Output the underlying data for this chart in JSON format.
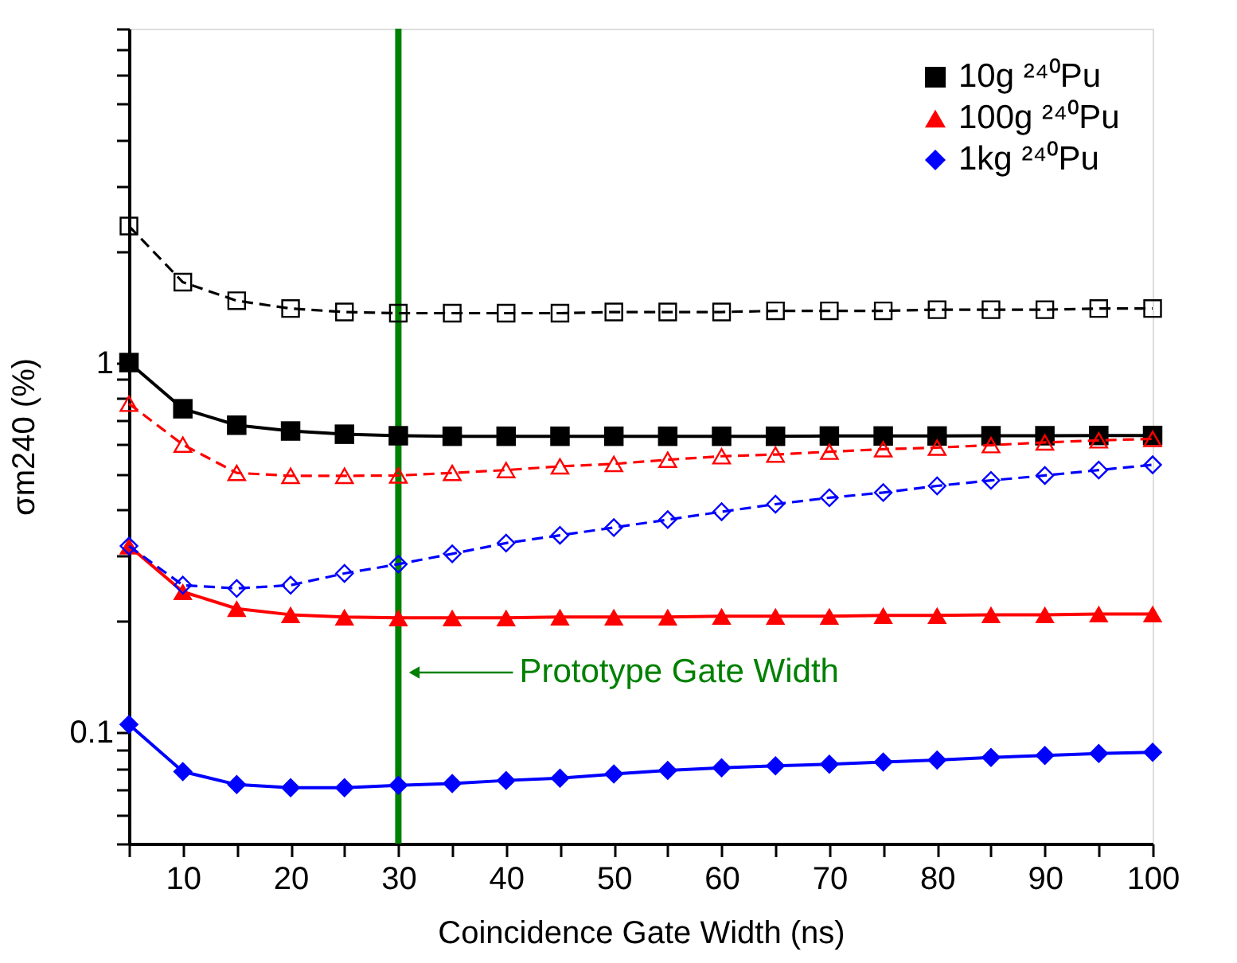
{
  "chart_data": {
    "type": "line",
    "xlabel": "Coincidence Gate Width (ns)",
    "ylabel": "σm240 (%)",
    "log": "y",
    "x": [
      5,
      10,
      15,
      20,
      25,
      30,
      35,
      40,
      45,
      50,
      55,
      60,
      65,
      70,
      75,
      80,
      85,
      90,
      95,
      100
    ],
    "xlim": [
      5,
      100
    ],
    "ylim": [
      0.05,
      8
    ],
    "xticks": [
      {
        "value": 5,
        "label": null
      },
      10,
      {
        "value": 15,
        "label": null
      },
      20,
      {
        "value": 25,
        "label": null
      },
      30,
      {
        "value": 35,
        "label": null
      },
      40,
      {
        "value": 45,
        "label": null
      },
      50,
      {
        "value": 55,
        "label": null
      },
      60,
      {
        "value": 65,
        "label": null
      },
      70,
      {
        "value": 75,
        "label": null
      },
      80,
      {
        "value": 85,
        "label": null
      },
      90,
      {
        "value": 95,
        "label": null
      },
      100
    ],
    "yticks": [
      {
        "value": 0.05,
        "label": null
      },
      {
        "value": 0.06,
        "label": null
      },
      {
        "value": 0.07,
        "label": null
      },
      {
        "value": 0.08,
        "label": null
      },
      {
        "value": 0.09,
        "label": null
      },
      0.1,
      {
        "value": 0.2,
        "label": null
      },
      {
        "value": 0.3,
        "label": null
      },
      {
        "value": 0.4,
        "label": null
      },
      {
        "value": 0.5,
        "label": null
      },
      {
        "value": 0.6,
        "label": null
      },
      {
        "value": 0.7,
        "label": null
      },
      {
        "value": 0.8,
        "label": null
      },
      {
        "value": 0.9,
        "label": null
      },
      1,
      {
        "value": 2,
        "label": null
      },
      {
        "value": 3,
        "label": null
      },
      {
        "value": 4,
        "label": null
      },
      {
        "value": 5,
        "label": null
      },
      {
        "value": 6,
        "label": null
      },
      {
        "value": 7,
        "label": null
      },
      {
        "value": 8,
        "label": null
      }
    ],
    "grid": false,
    "legend": "top right",
    "series": [
      {
        "name": "10g ²⁴⁰Pu",
        "color": "#000000",
        "marker": "square",
        "line_style": "solid",
        "values": [
          1.0,
          0.75,
          0.677,
          0.653,
          0.64,
          0.634,
          0.632,
          0.632,
          0.632,
          0.632,
          0.632,
          0.632,
          0.632,
          0.633,
          0.633,
          0.633,
          0.634,
          0.634,
          0.635,
          0.635
        ]
      },
      {
        "name": "100g ²⁴⁰Pu",
        "color": "#ff0000",
        "marker": "triangle",
        "line_style": "solid",
        "values": [
          0.319,
          0.24,
          0.216,
          0.208,
          0.205,
          0.204,
          0.204,
          0.204,
          0.205,
          0.205,
          0.205,
          0.206,
          0.206,
          0.206,
          0.207,
          0.207,
          0.208,
          0.208,
          0.209,
          0.209
        ]
      },
      {
        "name": "1kg ²⁴⁰Pu",
        "color": "#0000ff",
        "marker": "diamond",
        "line_style": "solid",
        "values": [
          0.105,
          0.0783,
          0.0722,
          0.0708,
          0.0708,
          0.0719,
          0.0727,
          0.0741,
          0.0752,
          0.0771,
          0.0789,
          0.0802,
          0.0812,
          0.082,
          0.0831,
          0.0841,
          0.0855,
          0.0866,
          0.0877,
          0.0883
        ]
      },
      {
        "color": "#000000",
        "marker": "square",
        "line_style": "dashed",
        "values": [
          2.34,
          1.65,
          1.47,
          1.4,
          1.37,
          1.36,
          1.36,
          1.36,
          1.36,
          1.37,
          1.37,
          1.37,
          1.38,
          1.38,
          1.38,
          1.39,
          1.39,
          1.39,
          1.4,
          1.4
        ]
      },
      {
        "color": "#ff0000",
        "marker": "triangle",
        "line_style": "dashed",
        "values": [
          0.774,
          0.6,
          0.503,
          0.494,
          0.494,
          0.495,
          0.503,
          0.512,
          0.524,
          0.532,
          0.546,
          0.558,
          0.564,
          0.574,
          0.583,
          0.589,
          0.598,
          0.608,
          0.616,
          0.622
        ]
      },
      {
        "color": "#0000ff",
        "marker": "diamond",
        "line_style": "dashed",
        "values": [
          0.319,
          0.25,
          0.245,
          0.25,
          0.269,
          0.285,
          0.304,
          0.325,
          0.341,
          0.358,
          0.376,
          0.395,
          0.414,
          0.431,
          0.445,
          0.464,
          0.48,
          0.495,
          0.512,
          0.529
        ]
      }
    ],
    "ref_lines": [
      {
        "axis": "x",
        "value": 30,
        "color": "#008000",
        "line_style": "solid"
      }
    ],
    "annotations": [
      "Prototype Gate Width"
    ]
  }
}
